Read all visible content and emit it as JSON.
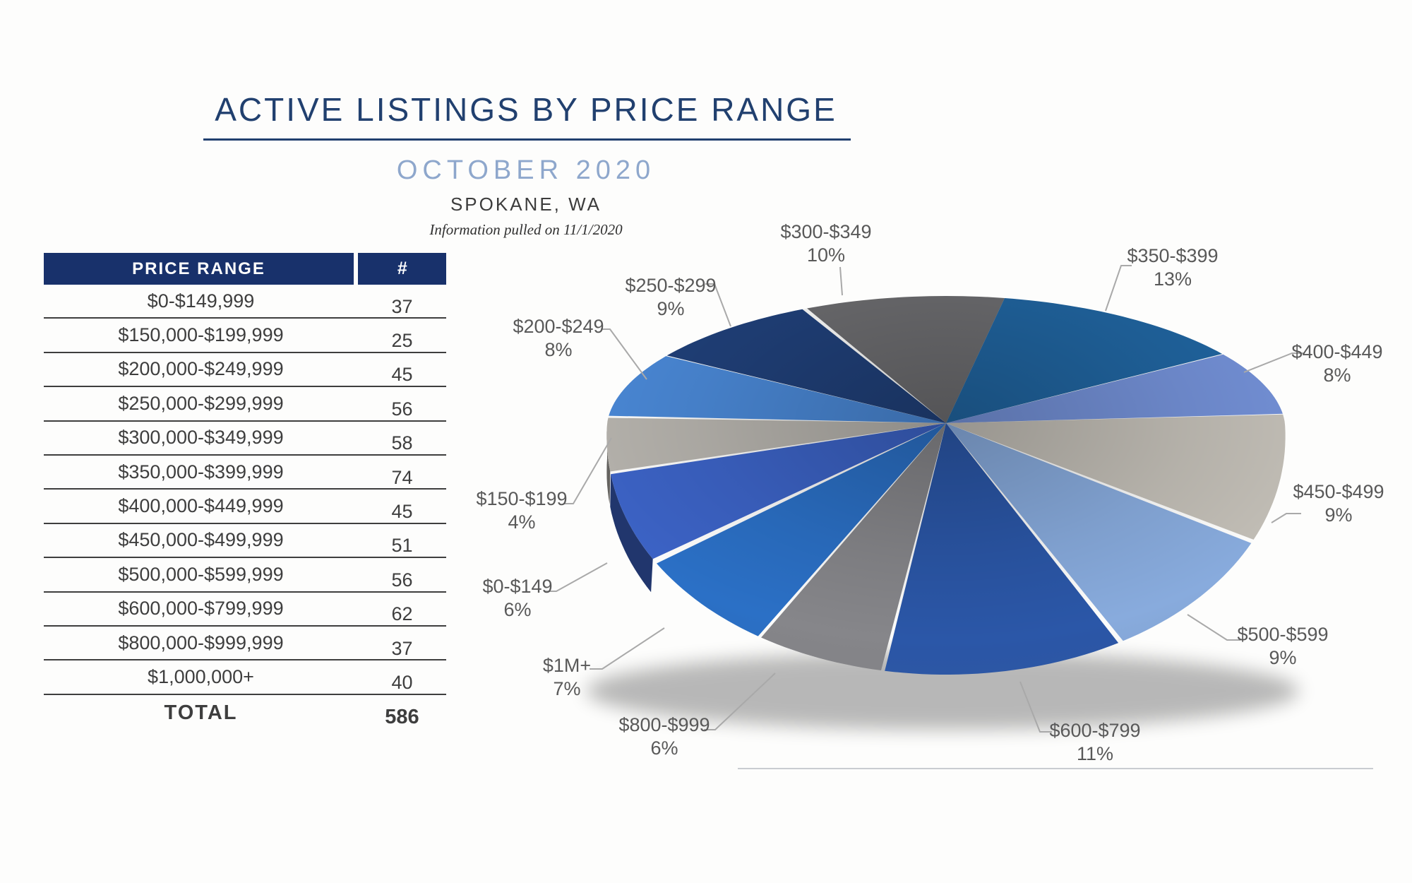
{
  "header": {
    "title": "ACTIVE LISTINGS BY PRICE RANGE",
    "subtitle": "OCTOBER 2020",
    "location": "SPOKANE, WA",
    "note": "Information pulled on 11/1/2020"
  },
  "table": {
    "columns": [
      "PRICE RANGE",
      "#"
    ],
    "rows": [
      {
        "range": "$0-$149,999",
        "count": "37"
      },
      {
        "range": "$150,000-$199,999",
        "count": "25"
      },
      {
        "range": "$200,000-$249,999",
        "count": "45"
      },
      {
        "range": "$250,000-$299,999",
        "count": "56"
      },
      {
        "range": "$300,000-$349,999",
        "count": "58"
      },
      {
        "range": "$350,000-$399,999",
        "count": "74"
      },
      {
        "range": "$400,000-$449,999",
        "count": "45"
      },
      {
        "range": "$450,000-$499,999",
        "count": "51"
      },
      {
        "range": "$500,000-$599,999",
        "count": "56"
      },
      {
        "range": "$600,000-$799,999",
        "count": "62"
      },
      {
        "range": "$800,000-$999,999",
        "count": "37"
      },
      {
        "range": "$1,000,000+",
        "count": "40"
      }
    ],
    "total_label": "TOTAL",
    "total_value": "586"
  },
  "chart_data": {
    "type": "pie",
    "title": "Active listings share by price range",
    "legend_position": "none",
    "style": "3d-pie",
    "rotation_deg": 237.3,
    "slices": [
      {
        "label": "$0-$149",
        "percent": 6,
        "count": 37,
        "color": "#3c63c6"
      },
      {
        "label": "$150-$199",
        "percent": 4,
        "count": 25,
        "color": "#b6b3ad"
      },
      {
        "label": "$200-$249",
        "percent": 8,
        "count": 45,
        "color": "#4a88d6"
      },
      {
        "label": "$250-$299",
        "percent": 9,
        "count": 56,
        "color": "#204079"
      },
      {
        "label": "$300-$349",
        "percent": 10,
        "count": 58,
        "color": "#6c6c6f"
      },
      {
        "label": "$350-$399",
        "percent": 13,
        "count": 74,
        "color": "#20649f"
      },
      {
        "label": "$400-$449",
        "percent": 8,
        "count": 45,
        "color": "#7390d6"
      },
      {
        "label": "$450-$499",
        "percent": 9,
        "count": 51,
        "color": "#c2beb6"
      },
      {
        "label": "$500-$599",
        "percent": 9,
        "count": 56,
        "color": "#88abdd"
      },
      {
        "label": "$600-$799",
        "percent": 11,
        "count": 62,
        "color": "#2b57a8"
      },
      {
        "label": "$800-$999",
        "percent": 6,
        "count": 37,
        "color": "#86868a"
      },
      {
        "label": "$1M+",
        "percent": 7,
        "count": 40,
        "color": "#2b70c6"
      }
    ]
  },
  "colors": {
    "accent_navy": "#21406f",
    "subtitle_blue": "#8ea7cc",
    "table_header_bg": "#18316b",
    "text_dark": "#3e3e3e",
    "label_gray": "#595959",
    "leader_line": "#a9a9a9",
    "bottom_rule": "#c9ccd1"
  }
}
